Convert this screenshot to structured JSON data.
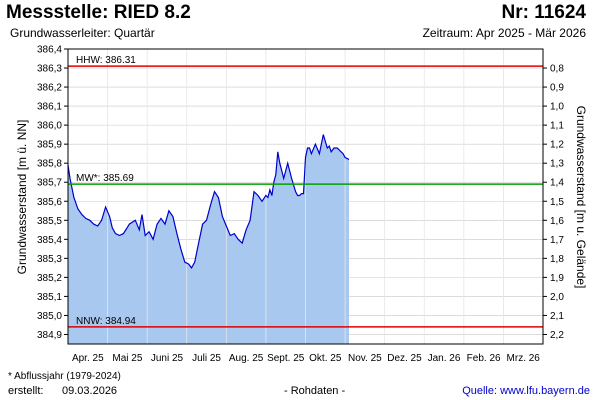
{
  "header": {
    "title": "Messstelle: RIED 8.2",
    "station_nr": "Nr: 11624",
    "subtitle": "Grundwasserleiter: Quartär",
    "period": "Zeitraum: Apr 2025 - Mär 2026"
  },
  "footer": {
    "footnote": "* Abflussjahr (1979-2024)",
    "created_label": "erstellt:",
    "created_date": "09.03.2026",
    "data_type": "- Rohdaten -",
    "source_label": "Quelle:",
    "source_link": "www.lfu.bayern.de"
  },
  "chart_data": {
    "type": "area",
    "xlabel": "",
    "ylabel": "Grundwasserstand [m ü. NN]",
    "ylabel_right": "Grundwasserstand [m u. Gelände]",
    "ylim": [
      384.85,
      386.4
    ],
    "y_ticks": [
      "384,9",
      "385,0",
      "385,1",
      "385,2",
      "385,3",
      "385,4",
      "385,5",
      "385,6",
      "385,7",
      "385,8",
      "385,9",
      "386,0",
      "386,1",
      "386,2",
      "386,3",
      "386,4"
    ],
    "y_tick_values": [
      384.9,
      385.0,
      385.1,
      385.2,
      385.3,
      385.4,
      385.5,
      385.6,
      385.7,
      385.8,
      385.9,
      386.0,
      386.1,
      386.2,
      386.3,
      386.4
    ],
    "y2_ticks": [
      "0,8",
      "0,9",
      "1,0",
      "1,1",
      "1,2",
      "1,3",
      "1,4",
      "1,5",
      "1,6",
      "1,7",
      "1,8",
      "1,9",
      "2,0",
      "2,1",
      "2,2"
    ],
    "y2_tick_values": [
      0.8,
      0.9,
      1.0,
      1.1,
      1.2,
      1.3,
      1.4,
      1.5,
      1.6,
      1.7,
      1.8,
      1.9,
      2.0,
      2.1,
      2.2
    ],
    "y2_offset": 387.1,
    "x_ticks": [
      "Apr. 25",
      "Mai 25",
      "Juni 25",
      "Juli 25",
      "Aug. 25",
      "Sept. 25",
      "Okt. 25",
      "Nov. 25",
      "Dez. 25",
      "Jan. 26",
      "Feb. 26",
      "Mrz. 26"
    ],
    "x_range_months": 12,
    "reference_lines": [
      {
        "label": "HHW: 386.31",
        "value": 386.31,
        "color": "#e00000"
      },
      {
        "label": "MW*: 385.69",
        "value": 385.69,
        "color": "#00a000"
      },
      {
        "label": "NNW: 384.94",
        "value": 384.94,
        "color": "#e00000"
      }
    ],
    "colors": {
      "line": "#0000cc",
      "fill": "#a8c8f0",
      "grid": "#c8c8c8"
    },
    "grid": true,
    "series": [
      {
        "x": [
          0.0,
          0.05,
          0.15,
          0.25,
          0.35,
          0.45,
          0.55,
          0.65,
          0.75,
          0.85,
          0.95,
          1.05,
          1.12,
          1.2,
          1.3,
          1.4,
          1.55,
          1.7,
          1.8,
          1.87,
          1.95,
          2.05,
          2.15,
          2.25,
          2.35,
          2.45,
          2.55,
          2.65,
          2.75,
          2.85,
          2.95,
          3.05,
          3.12,
          3.2,
          3.3,
          3.4,
          3.5,
          3.6,
          3.7,
          3.8,
          3.9,
          4.0,
          4.1,
          4.2,
          4.3,
          4.4,
          4.5,
          4.6,
          4.7,
          4.8,
          4.9,
          5.0,
          5.05,
          5.1,
          5.15,
          5.2,
          5.25,
          5.3,
          5.35,
          5.45,
          5.55,
          5.65,
          5.75,
          5.8,
          5.85,
          5.9,
          5.95,
          6.0,
          6.05,
          6.1,
          6.15,
          6.25,
          6.35,
          6.45,
          6.55,
          6.6,
          6.65,
          6.72,
          6.8,
          6.9,
          6.95,
          7.0,
          7.1
        ],
        "y": [
          385.79,
          385.72,
          385.62,
          385.56,
          385.53,
          385.51,
          385.5,
          385.48,
          385.47,
          385.5,
          385.57,
          385.52,
          385.46,
          385.43,
          385.42,
          385.43,
          385.48,
          385.5,
          385.45,
          385.53,
          385.42,
          385.44,
          385.4,
          385.48,
          385.51,
          385.48,
          385.55,
          385.52,
          385.43,
          385.35,
          385.28,
          385.27,
          385.25,
          385.28,
          385.38,
          385.48,
          385.5,
          385.58,
          385.65,
          385.62,
          385.52,
          385.47,
          385.42,
          385.43,
          385.4,
          385.38,
          385.45,
          385.5,
          385.65,
          385.63,
          385.6,
          385.63,
          385.62,
          385.66,
          385.63,
          385.7,
          385.74,
          385.86,
          385.8,
          385.72,
          385.8,
          385.72,
          385.65,
          385.63,
          385.63,
          385.64,
          385.64,
          385.83,
          385.88,
          385.88,
          385.85,
          385.9,
          385.85,
          385.95,
          385.88,
          385.89,
          385.86,
          385.88,
          385.88,
          385.86,
          385.85,
          385.83,
          385.82
        ]
      }
    ]
  }
}
